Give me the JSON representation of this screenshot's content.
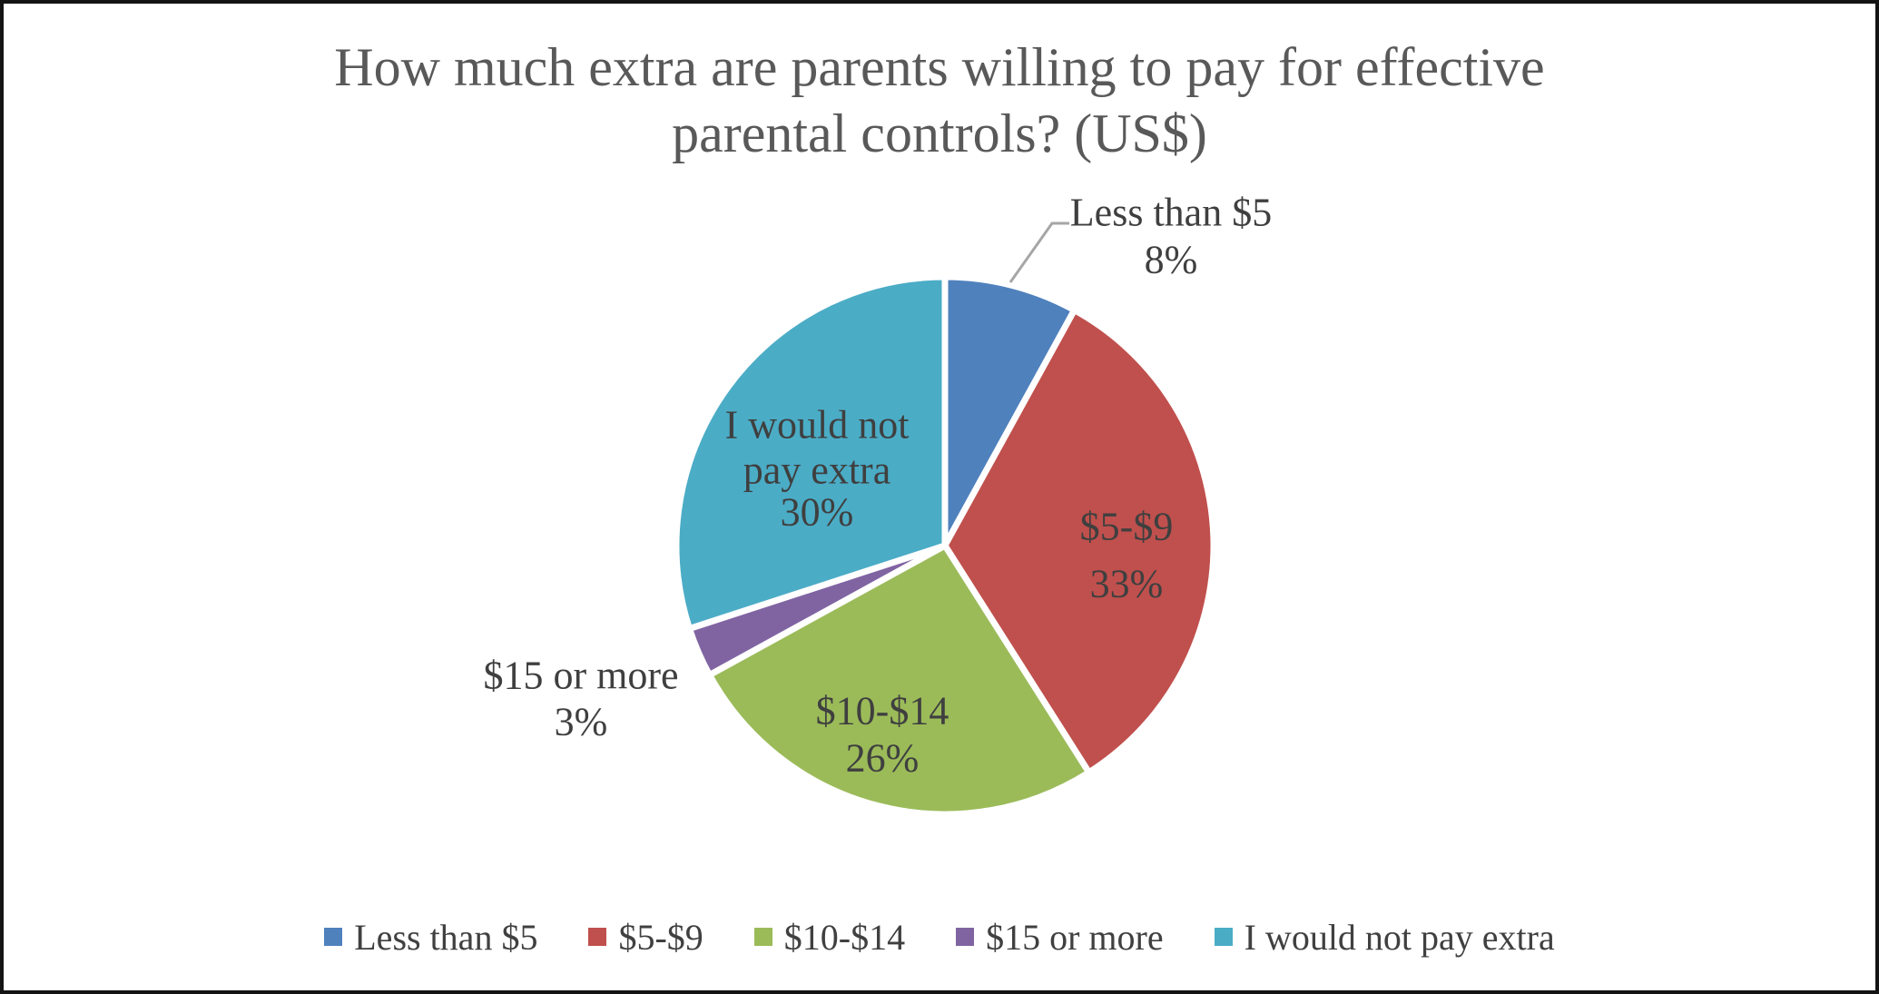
{
  "frame": {
    "background": "#ffffff",
    "border_color": "#141414"
  },
  "title": {
    "lines": [
      "How much extra are parents willing to pay for effective",
      "parental controls? (US$)"
    ],
    "color": "#595959"
  },
  "chart_data": {
    "type": "pie",
    "title": "How much extra are parents willing to pay for effective parental controls? (US$)",
    "categories": [
      "Less than $5",
      "$5-$9",
      "$10-$14",
      "$15 or more",
      "I would not pay extra"
    ],
    "values": [
      8,
      33,
      26,
      3,
      30
    ],
    "unit": "%",
    "colors": [
      "#4F81BD",
      "#C0504D",
      "#9BBB59",
      "#8064A2",
      "#4BACC6"
    ],
    "start_angle_deg": 0,
    "direction": "clockwise",
    "slice_label_lines": [
      [
        "Less than $5",
        "8%"
      ],
      [
        "$5-$9",
        "33%"
      ],
      [
        "$10-$14",
        "26%"
      ],
      [
        "$15 or more",
        "3%"
      ],
      [
        "I would not",
        "pay extra",
        "30%"
      ]
    ],
    "label_color": "#3F3F3F",
    "leader_line_color": "#A6A6A6",
    "legend": {
      "position": "bottom",
      "labels": [
        "Less than $5",
        "$5-$9",
        "$10-$14",
        "$15 or more",
        "I would not pay extra"
      ],
      "text_color": "#404040"
    }
  }
}
